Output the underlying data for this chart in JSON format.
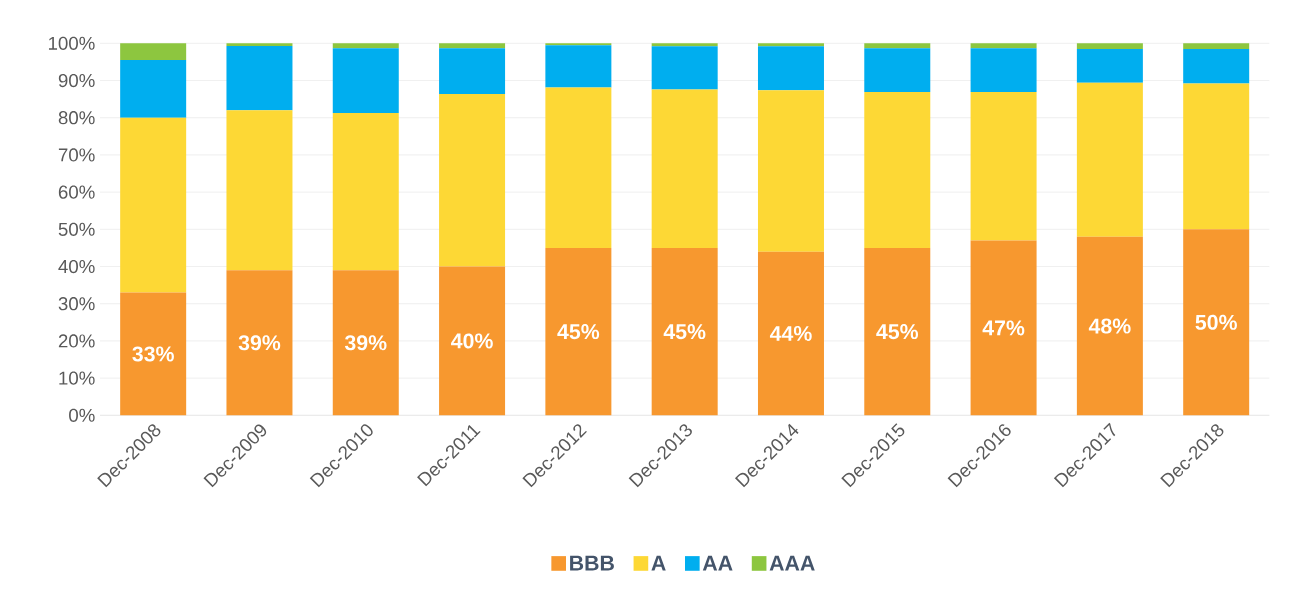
{
  "chart_data": {
    "type": "bar",
    "stacked": true,
    "categories": [
      "Dec-2008",
      "Dec-2009",
      "Dec-2010",
      "Dec-2011",
      "Dec-2012",
      "Dec-2013",
      "Dec-2014",
      "Dec-2015",
      "Dec-2016",
      "Dec-2017",
      "Dec-2018"
    ],
    "series": [
      {
        "name": "BBB",
        "color": "#f7982f",
        "values": [
          33,
          39,
          39,
          40,
          45,
          45,
          44,
          45,
          47,
          48,
          50
        ],
        "value_labels": [
          "33%",
          "39%",
          "39%",
          "40%",
          "45%",
          "45%",
          "44%",
          "45%",
          "47%",
          "48%",
          "50%"
        ]
      },
      {
        "name": "A",
        "color": "#fdd835",
        "values": [
          47,
          43,
          42.3,
          46.4,
          43.1,
          42.6,
          43.4,
          41.9,
          39.9,
          41.4,
          39.2
        ]
      },
      {
        "name": "AA",
        "color": "#00aeef",
        "values": [
          15.5,
          17.3,
          17.4,
          12.3,
          11.4,
          11.6,
          11.8,
          11.8,
          11.8,
          9.1,
          9.3
        ]
      },
      {
        "name": "AAA",
        "color": "#8dc63f",
        "values": [
          4.5,
          0.7,
          1.3,
          1.3,
          0.5,
          0.8,
          0.8,
          1.3,
          1.3,
          1.5,
          1.5
        ]
      }
    ],
    "ylim": [
      0,
      100
    ],
    "yticks": [
      {
        "value": 0,
        "label": "0%"
      },
      {
        "value": 10,
        "label": "10%"
      },
      {
        "value": 20,
        "label": "20%"
      },
      {
        "value": 30,
        "label": "30%"
      },
      {
        "value": 40,
        "label": "40%"
      },
      {
        "value": 50,
        "label": "50%"
      },
      {
        "value": 60,
        "label": "60%"
      },
      {
        "value": 70,
        "label": "70%"
      },
      {
        "value": 80,
        "label": "80%"
      },
      {
        "value": 90,
        "label": "90%"
      },
      {
        "value": 100,
        "label": "100%"
      }
    ],
    "grid": "y",
    "legend": "bottom"
  }
}
